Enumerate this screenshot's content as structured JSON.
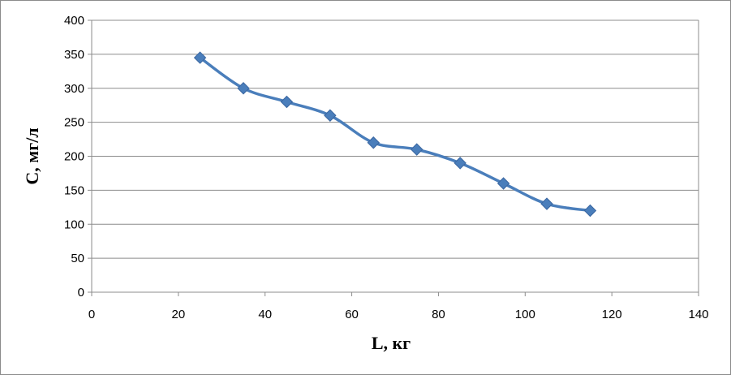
{
  "chart_data": {
    "type": "line",
    "title": "",
    "xlabel": "L, кг",
    "ylabel": "C, мг/л",
    "xlim": [
      0,
      140
    ],
    "ylim": [
      0,
      400
    ],
    "xticks": [
      0,
      20,
      40,
      60,
      80,
      100,
      120,
      140
    ],
    "yticks": [
      0,
      50,
      100,
      150,
      200,
      250,
      300,
      350,
      400
    ],
    "grid": "horizontal",
    "legend": "none",
    "series": [
      {
        "color": "#4a7ebb",
        "marker": "diamond",
        "smooth": true,
        "x": [
          25,
          35,
          45,
          55,
          65,
          75,
          85,
          95,
          105,
          115
        ],
        "y": [
          345,
          300,
          280,
          260,
          220,
          210,
          190,
          160,
          130,
          120
        ]
      }
    ]
  }
}
